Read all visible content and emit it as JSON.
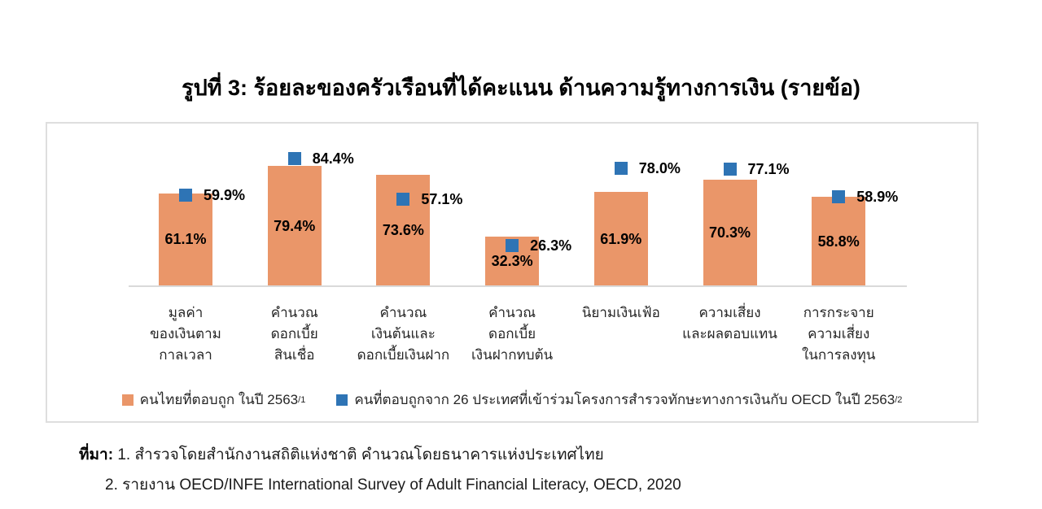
{
  "title": "รูปที่ 3: ร้อยละของครัวเรือนที่ได้คะแนน ด้านความรู้ทางการเงิน (รายข้อ)",
  "colors": {
    "bar_orange": "#EA9669",
    "marker_blue": "#2E74B5",
    "axis_gray": "#D9D9D9",
    "frame_gray": "#DEDEDE"
  },
  "chart_data": {
    "type": "bar",
    "title": "รูปที่ 3: ร้อยละของครัวเรือนที่ได้คะแนน ด้านความรู้ทางการเงิน (รายข้อ)",
    "xlabel": "",
    "ylabel": "",
    "ylim": [
      0,
      100
    ],
    "grid": false,
    "legend_position": "bottom",
    "categories": [
      [
        "มูลค่า",
        "ของเงินตาม",
        "กาลเวลา"
      ],
      [
        "คำนวณ",
        "ดอกเบี้ย",
        "สินเชื่อ"
      ],
      [
        "คำนวณ",
        "เงินต้นและ",
        "ดอกเบี้ยเงินฝาก"
      ],
      [
        "คำนวณ",
        "ดอกเบี้ย",
        "เงินฝากทบต้น"
      ],
      [
        "นิยามเงินเฟ้อ"
      ],
      [
        "ความเสี่ยง",
        "และผลตอบแทน"
      ],
      [
        "การกระจาย",
        "ความเสี่ยง",
        "ในการลงทุน"
      ]
    ],
    "series": [
      {
        "name": "คนไทยที่ตอบถูก ในปี 2563",
        "name_superscript": "/1",
        "render_as": "bar",
        "color": "#EA9669",
        "values": [
          61.1,
          79.4,
          73.6,
          32.3,
          61.9,
          70.3,
          58.8
        ],
        "labels": [
          "61.1%",
          "79.4%",
          "73.6%",
          "32.3%",
          "61.9%",
          "70.3%",
          "58.8%"
        ]
      },
      {
        "name": "คนที่ตอบถูกจาก 26 ประเทศที่เข้าร่วมโครงการสำรวจทักษะทางการเงินกับ OECD ในปี 2563",
        "name_superscript": "/2",
        "render_as": "square-marker",
        "color": "#2E74B5",
        "values": [
          59.9,
          84.4,
          57.1,
          26.3,
          78.0,
          77.1,
          58.9
        ],
        "labels": [
          "59.9%",
          "84.4%",
          "57.1%",
          "26.3%",
          "78.0%",
          "77.1%",
          "58.9%"
        ]
      }
    ]
  },
  "legend": {
    "items": [
      {
        "label": "คนไทยที่ตอบถูก ในปี 2563",
        "superscript": "/1",
        "color": "#EA9669"
      },
      {
        "label": "คนที่ตอบถูกจาก 26 ประเทศที่เข้าร่วมโครงการสำรวจทักษะทางการเงินกับ OECD ในปี 2563",
        "superscript": "/2",
        "color": "#2E74B5"
      }
    ]
  },
  "source": {
    "prefix": "ที่มา:",
    "line1": "1. สำรวจโดยสำนักงานสถิติแห่งชาติ คำนวณโดยธนาคารแห่งประเทศไทย",
    "line2": "2. รายงาน OECD/INFE International Survey of Adult Financial Literacy, OECD, 2020"
  }
}
